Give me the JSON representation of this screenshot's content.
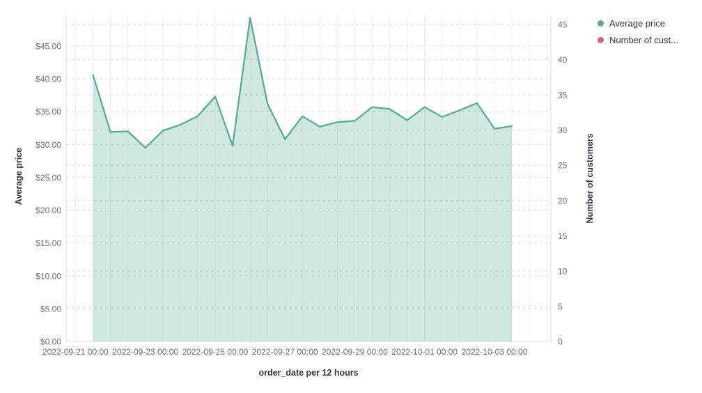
{
  "chart_data": {
    "type": "area",
    "title": "",
    "legend_position": "top-right",
    "grid": {
      "horizontal": "dashed",
      "vertical": "solid"
    },
    "x_axis": {
      "label": "order_date per 12 hours",
      "tick_labels": [
        "2022-09-21 00:00",
        "2022-09-23 00:00",
        "2022-09-25 00:00",
        "2022-09-27 00:00",
        "2022-09-29 00:00",
        "2022-10-01 00:00",
        "2022-10-03 00:00"
      ]
    },
    "y_axis_left": {
      "label": "Average price",
      "tick_labels": [
        "$0.00",
        "$5.00",
        "$10.00",
        "$15.00",
        "$20.00",
        "$25.00",
        "$30.00",
        "$35.00",
        "$40.00",
        "$45.00"
      ],
      "tick_values": [
        0,
        5,
        10,
        15,
        20,
        25,
        30,
        35,
        40,
        45
      ],
      "range": [
        0,
        49.6
      ]
    },
    "y_axis_right": {
      "label": "Number of customers",
      "tick_labels": [
        "0",
        "5",
        "10",
        "15",
        "20",
        "25",
        "30",
        "35",
        "40",
        "45"
      ],
      "tick_values": [
        0,
        5,
        10,
        15,
        20,
        25,
        30,
        35,
        40,
        45
      ],
      "range": [
        0,
        46.2
      ]
    },
    "series": [
      {
        "name": "Average price",
        "type": "area",
        "axis": "left",
        "color": "#55AB93",
        "fill_opacity": 0.28,
        "x": [
          "2022-09-21 00:00",
          "2022-09-21 12:00",
          "2022-09-22 00:00",
          "2022-09-22 12:00",
          "2022-09-23 00:00",
          "2022-09-23 12:00",
          "2022-09-24 00:00",
          "2022-09-24 12:00",
          "2022-09-25 00:00",
          "2022-09-25 12:00",
          "2022-09-26 00:00",
          "2022-09-26 12:00",
          "2022-09-27 00:00",
          "2022-09-27 12:00",
          "2022-09-28 00:00",
          "2022-09-28 12:00",
          "2022-09-29 00:00",
          "2022-09-29 12:00",
          "2022-09-30 00:00",
          "2022-09-30 12:00",
          "2022-10-01 00:00",
          "2022-10-01 12:00",
          "2022-10-02 00:00",
          "2022-10-02 12:00",
          "2022-10-03 00:00"
        ],
        "values": [
          40.6,
          31.9,
          32.0,
          29.5,
          32.1,
          33.0,
          34.3,
          37.3,
          29.8,
          49.3,
          36.2,
          30.8,
          34.3,
          32.7,
          33.4,
          33.6,
          35.7,
          35.4,
          33.7,
          35.7,
          34.2,
          35.2,
          36.3,
          32.4,
          32.8
        ]
      },
      {
        "name": "Number of cust...",
        "type": "area",
        "axis": "right",
        "color": "#D36086",
        "values": []
      }
    ]
  },
  "legend": {
    "items": [
      {
        "label": "Average price",
        "color": "#55AB93"
      },
      {
        "label": "Number of cust...",
        "color": "#D36086"
      }
    ]
  },
  "colors": {
    "tick_text": "#69707D",
    "axis_title_text": "#343741",
    "grid_dashed": "#D9DDE4",
    "grid_vertical": "#ECEFF3",
    "axis_line": "#D8DCE4"
  }
}
